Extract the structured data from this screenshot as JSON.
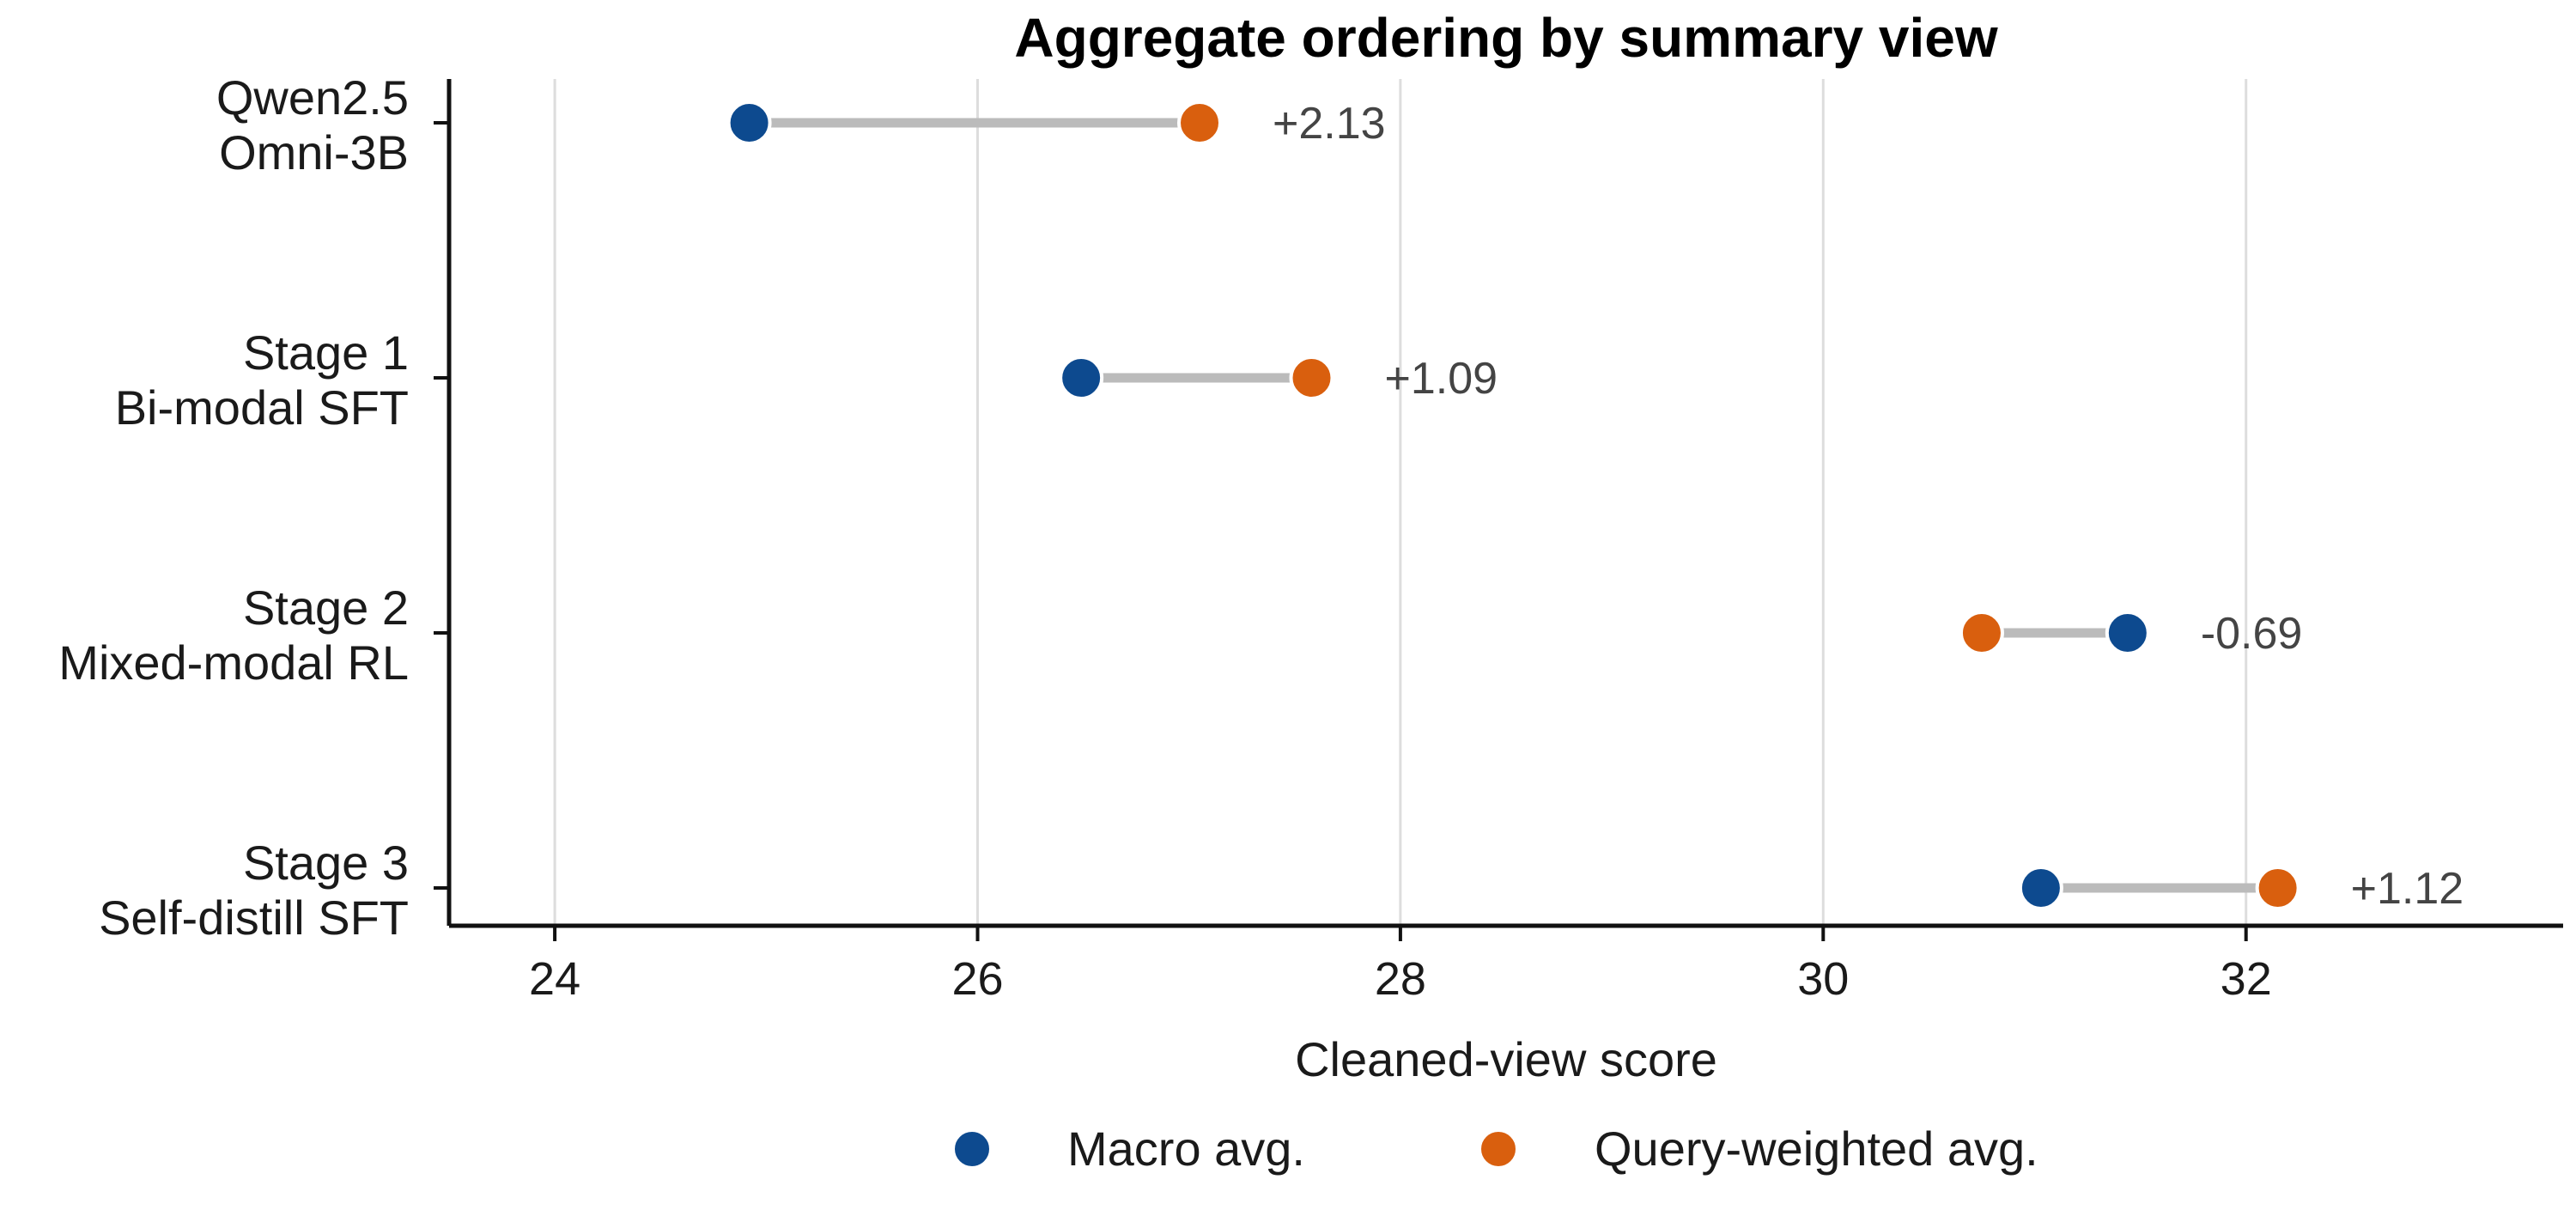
{
  "chart_data": {
    "type": "dumbbell",
    "title": "Aggregate ordering by summary view",
    "xlabel": "Cleaned-view score",
    "ylabel": "",
    "xlim": [
      23.5,
      33.5
    ],
    "xticks": [
      24,
      26,
      28,
      30,
      32
    ],
    "grid": "vertical",
    "legend_position": "bottom",
    "categories": [
      [
        "Qwen2.5",
        "Omni-3B"
      ],
      [
        "Stage 1",
        "Bi-modal SFT"
      ],
      [
        "Stage 2",
        "Mixed-modal RL"
      ],
      [
        "Stage 3",
        "Self-distill SFT"
      ]
    ],
    "series": [
      {
        "name": "Macro avg.",
        "color": "#0d4a8f",
        "values": [
          24.92,
          26.49,
          31.44,
          31.03
        ]
      },
      {
        "name": "Query-weighted avg.",
        "color": "#d95f0e",
        "values": [
          27.05,
          27.58,
          30.75,
          32.15
        ]
      }
    ],
    "differences": [
      "+2.13",
      "+1.09",
      "-0.69",
      "+1.12"
    ],
    "connector_color": "#bbbbbb",
    "grid_color": "#dddddd"
  }
}
